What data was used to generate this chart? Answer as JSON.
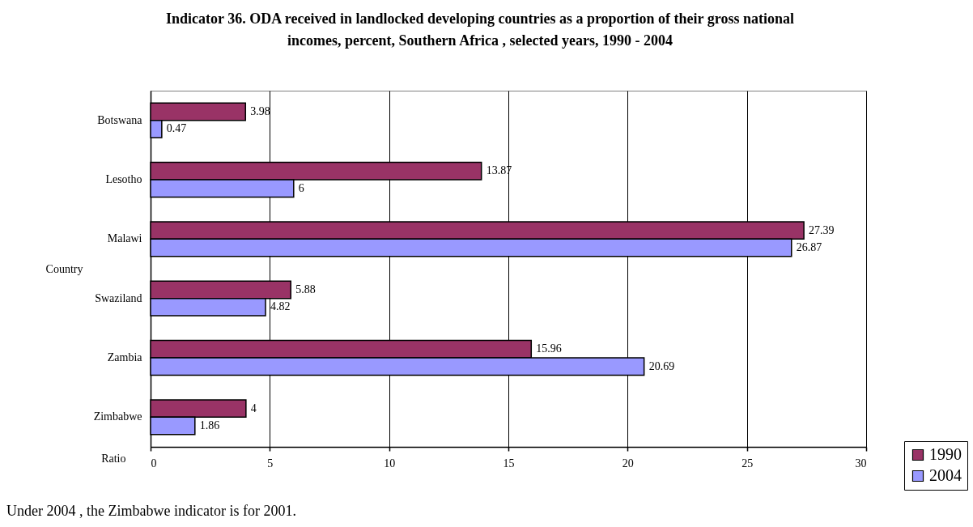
{
  "chart_data": {
    "type": "bar",
    "orientation": "horizontal",
    "title": "Indicator 36. ODA received in landlocked developing countries as a proportion of their gross national\nincomes,  percent, Southern Africa , selected years, 1990 - 2004",
    "xlabel": "Ratio",
    "ylabel": "Country",
    "categories": [
      "Botswana",
      "Lesotho",
      "Malawi",
      "Swaziland",
      "Zambia",
      "Zimbabwe"
    ],
    "series": [
      {
        "name": "1990",
        "color": "#993366",
        "values": [
          3.98,
          13.87,
          27.39,
          5.88,
          15.96,
          4
        ]
      },
      {
        "name": "2004",
        "color": "#9999ff",
        "values": [
          0.47,
          6,
          26.87,
          4.82,
          20.69,
          1.86
        ]
      }
    ],
    "xlim": [
      0,
      30
    ],
    "xticks": [
      0,
      5,
      10,
      15,
      20,
      25,
      30
    ],
    "grid": "x",
    "legend": "bottom right",
    "data_labels": true,
    "annotations": [
      "Under 2004 , the Zimbabwe indicator is for 2001."
    ]
  }
}
